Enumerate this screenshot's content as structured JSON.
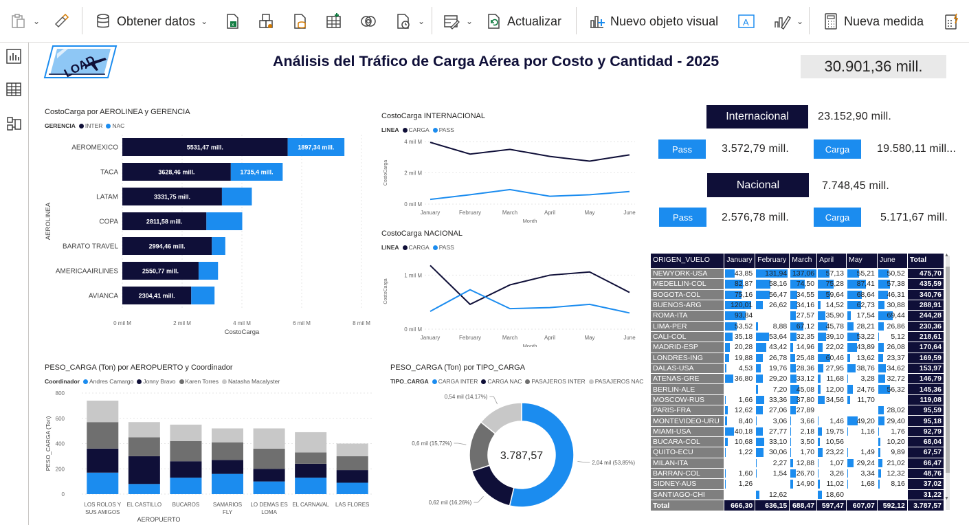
{
  "ribbon": {
    "obtener_datos": "Obtener datos",
    "actualizar": "Actualizar",
    "nuevo_objeto": "Nuevo objeto visual",
    "nueva_medida": "Nueva medida"
  },
  "report": {
    "logo_text": "LOAD",
    "title": "Análisis del Tráfico de Carga Aérea por Costo y Cantidad - 2025",
    "total_card": "30.901,36 mill."
  },
  "kpis": {
    "internacional_label": "Internacional",
    "internacional_value": "23.152,90 mill.",
    "int_pass_label": "Pass",
    "int_pass_value": "3.572,79 mill.",
    "int_carga_label": "Carga",
    "int_carga_value": "19.580,11 mill...",
    "nacional_label": "Nacional",
    "nacional_value": "7.748,45 mill.",
    "nac_pass_label": "Pass",
    "nac_pass_value": "2.576,78 mill.",
    "nac_carga_label": "Carga",
    "nac_carga_value": "5.171,67 mill."
  },
  "colors": {
    "navy": "#0f0f38",
    "blue": "#1b8cef",
    "dark_gray": "#4d4d4d",
    "gray": "#6f6f6f",
    "light_gray": "#c8c8c8"
  },
  "chart_data": [
    {
      "id": "aerolinea",
      "type": "bar",
      "orientation": "horizontal",
      "stacked": true,
      "title": "CostoCarga por AEROLINEA y GERENCIA",
      "legend_title": "GERENCIA",
      "xlabel": "CostoCarga",
      "ylabel": "AEROLINEA",
      "xlim": [
        0,
        8000
      ],
      "xticks": [
        0,
        2000,
        4000,
        6000,
        8000
      ],
      "xtick_labels": [
        "0 mil M",
        "2 mil M",
        "4 mil M",
        "6 mil M",
        "8 mil M"
      ],
      "categories": [
        "AEROMEXICO",
        "TACA",
        "LATAM",
        "COPA",
        "BARATO TRAVEL",
        "AMERICAAIRLINES",
        "AVIANCA"
      ],
      "series": [
        {
          "name": "INTER",
          "values": [
            5531.47,
            3628.46,
            3331.75,
            2811.58,
            2994.46,
            2550.77,
            2304.41
          ],
          "labels": [
            "5531,47 mill.",
            "3628,46 mill.",
            "3331,75 mill.",
            "2811,58 mill.",
            "2994,46 mill.",
            "2550,77 mill.",
            "2304,41 mill."
          ]
        },
        {
          "name": "NAC",
          "values": [
            1897.34,
            1735.4,
            1000,
            1200,
            450,
            650,
            780
          ],
          "labels": [
            "1897,34 mill.",
            "1735,4 mill.",
            "",
            "",
            "",
            "",
            ""
          ]
        }
      ]
    },
    {
      "id": "internacional",
      "type": "line",
      "title": "CostoCarga INTERNACIONAL",
      "legend_title": "LINEA",
      "xlabel": "Month",
      "ylabel": "CostoCarga",
      "ylim": [
        0,
        4000
      ],
      "yticks": [
        0,
        2000,
        4000
      ],
      "ytick_labels": [
        "0 mil M",
        "2 mil M",
        "4 mil M"
      ],
      "categories": [
        "January",
        "February",
        "March",
        "April",
        "May",
        "June"
      ],
      "series": [
        {
          "name": "CARGA",
          "values": [
            3950,
            3200,
            3500,
            3050,
            2750,
            3150
          ]
        },
        {
          "name": "PASS",
          "values": [
            300,
            600,
            930,
            500,
            600,
            800
          ]
        }
      ]
    },
    {
      "id": "nacional",
      "type": "line",
      "title": "CostoCarga NACIONAL",
      "legend_title": "LINEA",
      "xlabel": "Month",
      "ylabel": "CostoCarga",
      "ylim": [
        0,
        1400
      ],
      "yticks": [
        0,
        1000
      ],
      "ytick_labels": [
        "0 mil M",
        "1 mil M"
      ],
      "categories": [
        "January",
        "February",
        "March",
        "April",
        "May",
        "June"
      ],
      "series": [
        {
          "name": "CARGA",
          "values": [
            1180,
            460,
            820,
            1000,
            1060,
            680
          ]
        },
        {
          "name": "PASS",
          "values": [
            330,
            730,
            380,
            400,
            460,
            300
          ]
        }
      ]
    },
    {
      "id": "peso_aeropuerto",
      "type": "bar",
      "stacked": true,
      "title": "PESO_CARGA (Ton) por AEROPUERTO y Coordinador",
      "legend_title": "Coordinador",
      "xlabel": "AEROPUERTO",
      "ylabel": "PESO_CARGA (Ton)",
      "ylim": [
        0,
        800
      ],
      "yticks": [
        0,
        200,
        400,
        600,
        800
      ],
      "categories": [
        "LOS ROLOS Y SUS AMIGOS",
        "EL CASTILLO",
        "BUCAROS",
        "SAMARIOS FLY",
        "LO DEMAS ES LOMA",
        "EL CARNAVAL",
        "LAS FLORES"
      ],
      "category_lines": [
        [
          "LOS ROLOS Y",
          "SUS AMIGOS"
        ],
        [
          "EL CASTILLO"
        ],
        [
          "BUCAROS"
        ],
        [
          "SAMARIOS",
          "FLY"
        ],
        [
          "LO DEMAS ES",
          "LOMA"
        ],
        [
          "EL CARNAVAL"
        ],
        [
          "LAS FLORES"
        ]
      ],
      "series": [
        {
          "name": "Andres Camargo",
          "values": [
            170,
            80,
            130,
            160,
            100,
            130,
            90
          ]
        },
        {
          "name": "Jonny Bravo",
          "values": [
            190,
            220,
            130,
            110,
            100,
            110,
            100
          ]
        },
        {
          "name": "Karen Torres",
          "values": [
            210,
            150,
            160,
            140,
            160,
            90,
            110
          ]
        },
        {
          "name": "Natasha Macalyster",
          "values": [
            170,
            120,
            130,
            110,
            160,
            160,
            100
          ]
        }
      ]
    },
    {
      "id": "tipo_carga",
      "type": "pie",
      "donut": true,
      "title": "PESO_CARGA (Ton) por TIPO_CARGA",
      "legend_title": "TIPO_CARGA",
      "center_label": "3.787,57",
      "slices": [
        {
          "name": "CARGA INTER",
          "value": 2.04,
          "label": "2,04 mil (53,85%)"
        },
        {
          "name": "CARGA NAC",
          "value": 0.62,
          "label": "0,62 mil (16,26%)"
        },
        {
          "name": "PASAJEROS INTER",
          "value": 0.6,
          "label": "0,6 mil (15,72%)"
        },
        {
          "name": "PASAJEROS NAC",
          "value": 0.54,
          "label": "0,54 mil (14,17%)"
        }
      ]
    },
    {
      "id": "origen_matrix",
      "type": "table",
      "columns": [
        "ORIGEN_VUELO",
        "January",
        "February",
        "March",
        "April",
        "May",
        "June",
        "Total"
      ],
      "bar_max": 140,
      "rows": [
        {
          "name": "NEWYORK-USA",
          "values": [
            43.85,
            131.94,
            137.06,
            57.13,
            55.21,
            50.52
          ],
          "total": "475,70"
        },
        {
          "name": "MEDELLIN-COL",
          "values": [
            82.87,
            58.16,
            74.5,
            75.28,
            87.41,
            57.38
          ],
          "total": "435,59"
        },
        {
          "name": "BOGOTA-COL",
          "values": [
            75.16,
            56.47,
            34.55,
            59.64,
            68.64,
            46.31
          ],
          "total": "340,76"
        },
        {
          "name": "BUENOS-ARG",
          "values": [
            120.01,
            26.62,
            34.16,
            14.52,
            62.73,
            30.88
          ],
          "total": "288,91"
        },
        {
          "name": "ROMA-ITA",
          "values": [
            93.84,
            null,
            27.57,
            35.9,
            17.54,
            69.44
          ],
          "total": "244,28"
        },
        {
          "name": "LIMA-PER",
          "values": [
            53.52,
            8.88,
            67.12,
            45.78,
            28.21,
            26.86
          ],
          "total": "230,36"
        },
        {
          "name": "CALI-COL",
          "values": [
            35.18,
            53.64,
            32.35,
            39.1,
            53.22,
            5.12
          ],
          "total": "218,61"
        },
        {
          "name": "MADRID-ESP",
          "values": [
            20.28,
            43.42,
            14.96,
            22.02,
            43.89,
            26.08
          ],
          "total": "170,64"
        },
        {
          "name": "LONDRES-ING",
          "values": [
            19.88,
            26.78,
            25.48,
            60.46,
            13.62,
            23.37
          ],
          "total": "169,59"
        },
        {
          "name": "DALAS-USA",
          "values": [
            4.53,
            19.76,
            28.36,
            27.95,
            38.76,
            34.62
          ],
          "total": "153,97"
        },
        {
          "name": "ATENAS-GRE",
          "values": [
            36.8,
            29.2,
            33.12,
            11.68,
            3.28,
            32.72
          ],
          "total": "146,79"
        },
        {
          "name": "BERLIN-ALE",
          "values": [
            null,
            7.2,
            45.08,
            12.0,
            24.76,
            56.32
          ],
          "total": "145,36"
        },
        {
          "name": "MOSCOW-RUS",
          "values": [
            1.66,
            33.36,
            37.8,
            34.56,
            11.7,
            null
          ],
          "total": "119,08"
        },
        {
          "name": "PARIS-FRA",
          "values": [
            12.62,
            27.06,
            27.89,
            null,
            null,
            28.02
          ],
          "total": "95,59"
        },
        {
          "name": "MONTEVIDEO-URU",
          "values": [
            8.4,
            3.06,
            3.66,
            1.46,
            49.2,
            29.4
          ],
          "total": "95,18"
        },
        {
          "name": "MIAMI-USA",
          "values": [
            40.18,
            27.77,
            2.18,
            19.75,
            1.16,
            1.76
          ],
          "total": "92,79"
        },
        {
          "name": "BUCARA-COL",
          "values": [
            10.68,
            33.1,
            3.5,
            10.56,
            null,
            10.2
          ],
          "total": "68,04"
        },
        {
          "name": "QUITO-ECU",
          "values": [
            1.22,
            30.06,
            1.7,
            23.22,
            1.49,
            9.89
          ],
          "total": "67,57"
        },
        {
          "name": "MILAN-ITA",
          "values": [
            null,
            2.27,
            12.88,
            1.07,
            29.24,
            21.02
          ],
          "total": "66,47"
        },
        {
          "name": "BARRAN-COL",
          "values": [
            1.6,
            1.54,
            26.7,
            3.26,
            3.34,
            12.32
          ],
          "total": "48,76"
        },
        {
          "name": "SIDNEY-AUS",
          "values": [
            1.26,
            null,
            14.9,
            11.02,
            1.68,
            8.16
          ],
          "total": "37,02"
        },
        {
          "name": "SANTIAGO-CHI",
          "values": [
            null,
            12.62,
            null,
            18.6,
            null,
            null
          ],
          "total": "31,22"
        }
      ],
      "footer": {
        "label": "Total",
        "values": [
          "666,30",
          "636,15",
          "688,47",
          "597,47",
          "607,07",
          "592,12"
        ],
        "total": "3.787,57"
      }
    }
  ]
}
